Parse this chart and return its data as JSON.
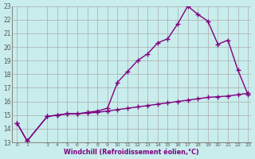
{
  "xlabel": "Windchill (Refroidissement éolien,°C)",
  "line1_x": [
    0,
    1,
    3,
    4,
    5,
    6,
    7,
    8,
    9,
    10,
    11,
    12,
    13,
    14,
    15,
    16,
    17,
    18,
    19,
    20,
    21,
    22,
    23
  ],
  "line1_y": [
    14.4,
    13.1,
    14.9,
    15.0,
    15.1,
    15.1,
    15.2,
    15.3,
    15.5,
    17.4,
    18.2,
    19.0,
    19.5,
    20.3,
    20.6,
    21.7,
    23.0,
    22.4,
    21.9,
    20.2,
    20.5,
    18.3,
    16.5
  ],
  "line2_x": [
    0,
    1,
    3,
    4,
    5,
    6,
    7,
    8,
    9,
    10,
    11,
    12,
    13,
    14,
    15,
    16,
    17,
    18,
    19,
    20,
    21,
    22,
    23
  ],
  "line2_y": [
    14.4,
    13.1,
    14.9,
    15.0,
    15.1,
    15.1,
    15.15,
    15.2,
    15.3,
    15.4,
    15.5,
    15.6,
    15.7,
    15.8,
    15.9,
    16.0,
    16.1,
    16.2,
    16.3,
    16.35,
    16.4,
    16.5,
    16.6
  ],
  "line_color": "#800080",
  "bg_color": "#C8EDEC",
  "grid_color": "#aaaaaa",
  "ylim": [
    13,
    23
  ],
  "xlim": [
    -0.5,
    23.3
  ],
  "yticks": [
    13,
    14,
    15,
    16,
    17,
    18,
    19,
    20,
    21,
    22,
    23
  ],
  "xticks": [
    0,
    1,
    3,
    4,
    5,
    6,
    7,
    8,
    9,
    10,
    11,
    12,
    13,
    14,
    15,
    16,
    17,
    18,
    19,
    20,
    21,
    22,
    23
  ],
  "marker": "+",
  "markersize": 4,
  "linewidth": 1.0
}
